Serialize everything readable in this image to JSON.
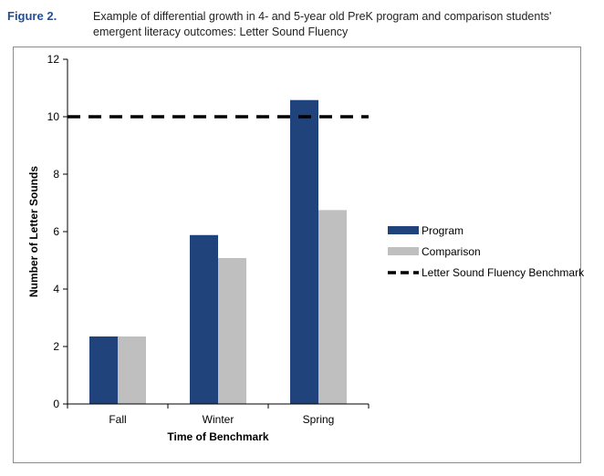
{
  "figure": {
    "label": "Figure 2.",
    "caption": "Example of differential growth in 4- and 5-year old PreK program and comparison students' emergent literacy outcomes: Letter Sound Fluency"
  },
  "colors": {
    "program": "#1f437a",
    "comparison": "#bfbfbf",
    "benchmark": "#000000"
  },
  "chart_data": {
    "type": "bar",
    "title": "",
    "xlabel": "Time of Benchmark",
    "ylabel": "Number of Letter Sounds",
    "ylim": [
      0,
      12
    ],
    "yticks": [
      0,
      2,
      4,
      6,
      8,
      10,
      12
    ],
    "categories": [
      "Fall",
      "Winter",
      "Spring"
    ],
    "series": [
      {
        "name": "Program",
        "values": [
          2.35,
          5.88,
          10.58
        ]
      },
      {
        "name": "Comparison",
        "values": [
          2.35,
          5.08,
          6.75
        ]
      }
    ],
    "reference_line": {
      "name": "Letter Sound Fluency Benchmark",
      "value": 10,
      "style": "dashed"
    },
    "grid": false,
    "legend_position": "right"
  }
}
